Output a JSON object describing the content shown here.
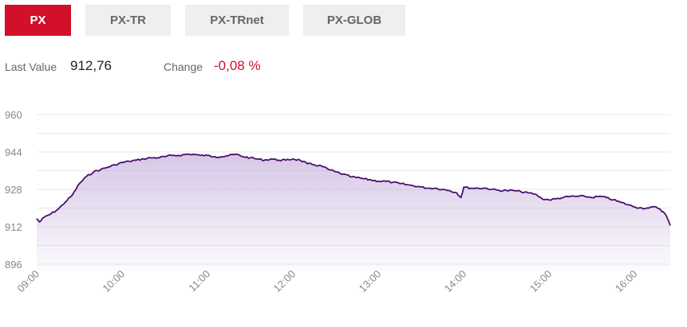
{
  "tabs": [
    {
      "label": "PX",
      "active": true
    },
    {
      "label": "PX-TR",
      "active": false
    },
    {
      "label": "PX-TRnet",
      "active": false
    },
    {
      "label": "PX-GLOB",
      "active": false
    }
  ],
  "stats": {
    "last_value_label": "Last Value",
    "last_value": "912,76",
    "change_label": "Change",
    "change": "-0,08 %"
  },
  "colors": {
    "accent": "#d2102a",
    "line": "#4b0f6e",
    "area_top": "#b59ad2",
    "grid": "#e8e8ee"
  },
  "chart_data": {
    "type": "area",
    "title": "",
    "xlabel": "",
    "ylabel": "",
    "y_ticks": [
      960,
      944,
      928,
      912,
      896
    ],
    "y_tick_labels": [
      "960",
      "944",
      "928",
      "912",
      "896"
    ],
    "ylim": [
      896,
      960
    ],
    "x_ticks": [
      "09:00",
      "10:00",
      "11:00",
      "12:00",
      "13:00",
      "14:00",
      "15:00",
      "16:00"
    ],
    "xlim": [
      "09:00",
      "16:25"
    ],
    "grid": true,
    "series": [
      {
        "values": [
          [
            "09:00",
            915.5
          ],
          [
            "09:02",
            914.0
          ],
          [
            "09:05",
            916.0
          ],
          [
            "09:10",
            917.5
          ],
          [
            "09:15",
            919.5
          ],
          [
            "09:20",
            922.5
          ],
          [
            "09:25",
            925.5
          ],
          [
            "09:30",
            930.5
          ],
          [
            "09:35",
            933.5
          ],
          [
            "09:40",
            935.5
          ],
          [
            "09:45",
            936.5
          ],
          [
            "09:50",
            937.5
          ],
          [
            "09:55",
            938.5
          ],
          [
            "10:00",
            939.5
          ],
          [
            "10:05",
            940.0
          ],
          [
            "10:10",
            940.5
          ],
          [
            "10:15",
            941.0
          ],
          [
            "10:20",
            941.5
          ],
          [
            "10:25",
            941.5
          ],
          [
            "10:30",
            942.0
          ],
          [
            "10:35",
            942.5
          ],
          [
            "10:40",
            942.5
          ],
          [
            "10:45",
            943.0
          ],
          [
            "10:50",
            943.0
          ],
          [
            "10:55",
            942.5
          ],
          [
            "11:00",
            942.5
          ],
          [
            "11:05",
            942.0
          ],
          [
            "11:10",
            942.0
          ],
          [
            "11:15",
            942.5
          ],
          [
            "11:20",
            943.0
          ],
          [
            "11:25",
            942.0
          ],
          [
            "11:30",
            941.5
          ],
          [
            "11:35",
            941.0
          ],
          [
            "11:40",
            940.5
          ],
          [
            "11:45",
            941.0
          ],
          [
            "11:50",
            940.5
          ],
          [
            "11:55",
            940.5
          ],
          [
            "12:00",
            941.0
          ],
          [
            "12:05",
            940.5
          ],
          [
            "12:10",
            939.0
          ],
          [
            "12:15",
            938.5
          ],
          [
            "12:20",
            938.0
          ],
          [
            "12:25",
            936.5
          ],
          [
            "12:30",
            935.5
          ],
          [
            "12:35",
            934.5
          ],
          [
            "12:40",
            933.5
          ],
          [
            "12:45",
            933.0
          ],
          [
            "12:50",
            932.5
          ],
          [
            "12:55",
            932.0
          ],
          [
            "13:00",
            931.5
          ],
          [
            "13:05",
            931.5
          ],
          [
            "13:10",
            931.0
          ],
          [
            "13:15",
            930.5
          ],
          [
            "13:20",
            930.0
          ],
          [
            "13:25",
            929.5
          ],
          [
            "13:30",
            929.0
          ],
          [
            "13:35",
            928.5
          ],
          [
            "13:40",
            928.5
          ],
          [
            "13:45",
            928.0
          ],
          [
            "13:50",
            927.5
          ],
          [
            "13:55",
            926.5
          ],
          [
            "13:58",
            924.5
          ],
          [
            "14:00",
            929.0
          ],
          [
            "14:05",
            928.5
          ],
          [
            "14:10",
            928.5
          ],
          [
            "14:15",
            928.5
          ],
          [
            "14:20",
            928.0
          ],
          [
            "14:25",
            927.5
          ],
          [
            "14:30",
            927.5
          ],
          [
            "14:35",
            927.5
          ],
          [
            "14:40",
            927.0
          ],
          [
            "14:45",
            926.5
          ],
          [
            "14:50",
            926.0
          ],
          [
            "14:55",
            924.0
          ],
          [
            "15:00",
            923.5
          ],
          [
            "15:05",
            924.0
          ],
          [
            "15:10",
            924.5
          ],
          [
            "15:15",
            925.0
          ],
          [
            "15:20",
            925.0
          ],
          [
            "15:25",
            925.0
          ],
          [
            "15:30",
            924.5
          ],
          [
            "15:35",
            925.0
          ],
          [
            "15:40",
            924.5
          ],
          [
            "15:45",
            923.5
          ],
          [
            "15:50",
            922.5
          ],
          [
            "15:55",
            921.5
          ],
          [
            "16:00",
            920.5
          ],
          [
            "16:05",
            920.0
          ],
          [
            "16:10",
            920.0
          ],
          [
            "16:15",
            920.5
          ],
          [
            "16:18",
            919.5
          ],
          [
            "16:22",
            917.0
          ],
          [
            "16:25",
            912.5
          ]
        ]
      }
    ]
  }
}
